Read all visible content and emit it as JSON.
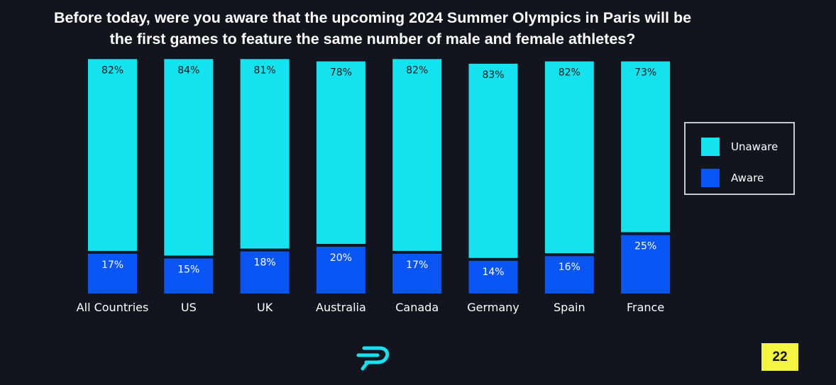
{
  "title": {
    "line1": "Before today, were you aware that the upcoming 2024 Summer Olympics in Paris will be",
    "line2": "the first games to feature the same number of male and female athletes?"
  },
  "colors": {
    "background": "#12151d",
    "unaware": "#14e2ee",
    "aware": "#0a55f5",
    "page_badge": "#f3f542"
  },
  "legend": {
    "unaware_label": "Unaware",
    "aware_label": "Aware"
  },
  "page_number": "22",
  "logo_icon": "brand-p-logo-icon",
  "chart_data": {
    "type": "bar",
    "stacked": true,
    "categories": [
      "All Countries",
      "US",
      "UK",
      "Australia",
      "Canada",
      "Germany",
      "Spain",
      "France"
    ],
    "series": [
      {
        "name": "Aware",
        "values": [
          17,
          15,
          18,
          20,
          17,
          14,
          16,
          25
        ],
        "labels": [
          "17%",
          "15%",
          "18%",
          "20%",
          "17%",
          "14%",
          "16%",
          "25%"
        ]
      },
      {
        "name": "Unaware",
        "values": [
          82,
          84,
          81,
          78,
          82,
          83,
          82,
          73
        ],
        "labels": [
          "82%",
          "84%",
          "81%",
          "78%",
          "82%",
          "83%",
          "82%",
          "73%"
        ]
      }
    ],
    "ylim": [
      0,
      100
    ],
    "grid": false,
    "legend_position": "right"
  }
}
